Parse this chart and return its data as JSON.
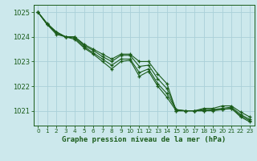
{
  "title": "Graphe pression niveau de la mer (hPa)",
  "background_color": "#cce8ec",
  "grid_color": "#aad0d8",
  "line_color": "#1a5c1a",
  "xlim": [
    -0.5,
    23.5
  ],
  "ylim": [
    1020.4,
    1025.3
  ],
  "yticks": [
    1021,
    1022,
    1023,
    1024,
    1025
  ],
  "xticks": [
    0,
    1,
    2,
    3,
    4,
    5,
    6,
    7,
    8,
    9,
    10,
    11,
    12,
    13,
    14,
    15,
    16,
    17,
    18,
    19,
    20,
    21,
    22,
    23
  ],
  "series": [
    [
      1025.0,
      1024.5,
      1024.2,
      1024.0,
      1024.0,
      1023.7,
      1023.5,
      1023.3,
      1023.1,
      1023.3,
      1023.3,
      1023.0,
      1023.0,
      1022.5,
      1022.1,
      1021.0,
      1021.0,
      1021.0,
      1021.1,
      1021.1,
      1021.2,
      1021.2,
      1020.95,
      1020.75
    ],
    [
      1025.0,
      1024.55,
      1024.2,
      1024.0,
      1024.0,
      1023.65,
      1023.45,
      1023.2,
      1023.0,
      1023.25,
      1023.25,
      1022.8,
      1022.85,
      1022.3,
      1021.9,
      1021.05,
      1021.0,
      1021.0,
      1021.05,
      1021.05,
      1021.1,
      1021.15,
      1020.85,
      1020.65
    ],
    [
      1025.0,
      1024.5,
      1024.15,
      1024.0,
      1023.95,
      1023.6,
      1023.35,
      1023.1,
      1022.85,
      1023.1,
      1023.1,
      1022.55,
      1022.7,
      1022.1,
      1021.7,
      1021.05,
      1021.0,
      1021.0,
      1021.0,
      1021.05,
      1021.05,
      1021.1,
      1020.8,
      1020.6
    ],
    [
      1025.0,
      1024.5,
      1024.1,
      1024.0,
      1023.9,
      1023.55,
      1023.3,
      1023.0,
      1022.7,
      1023.0,
      1023.05,
      1022.4,
      1022.6,
      1022.0,
      1021.55,
      1021.0,
      1021.0,
      1021.0,
      1021.0,
      1021.0,
      1021.05,
      1021.1,
      1020.75,
      1020.55
    ]
  ]
}
